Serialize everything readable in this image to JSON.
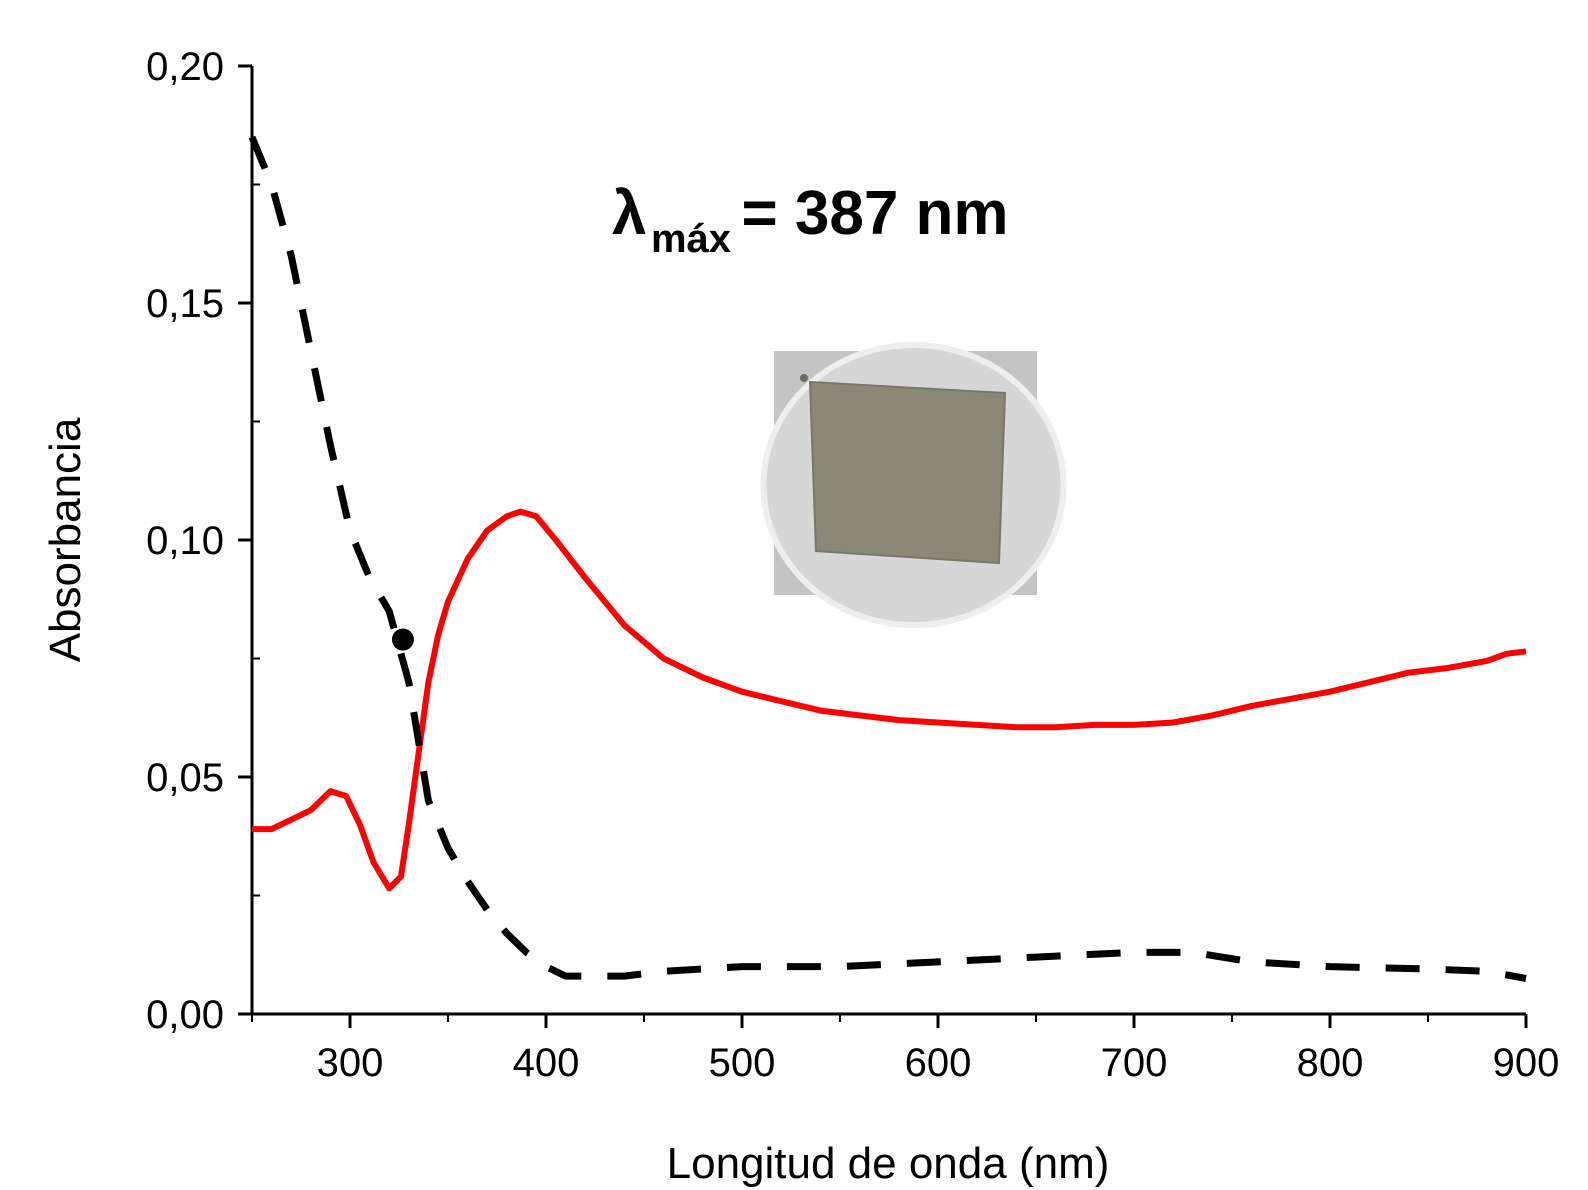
{
  "chart_data": {
    "type": "line",
    "xlabel": "Longitud de onda (nm)",
    "ylabel": "Absorbancia",
    "xlim": [
      250,
      900
    ],
    "ylim": [
      0,
      0.2
    ],
    "x_ticks": [
      300,
      400,
      500,
      600,
      700,
      800,
      900
    ],
    "x_tick_labels": [
      "300",
      "400",
      "500",
      "600",
      "700",
      "800",
      "900"
    ],
    "y_ticks": [
      0,
      0.05,
      0.1,
      0.15,
      0.2
    ],
    "y_tick_labels": [
      "0,00",
      "0,05",
      "0,10",
      "0,15",
      "0,20"
    ],
    "grid": false,
    "annotation": {
      "symbol": "λ",
      "subscript": "máx",
      "text": "= 387 nm",
      "peak_x": 387
    },
    "series": [
      {
        "style": "solid",
        "color": "#ff0000",
        "points": [
          [
            250,
            0.039
          ],
          [
            260,
            0.039
          ],
          [
            270,
            0.041
          ],
          [
            280,
            0.043
          ],
          [
            290,
            0.047
          ],
          [
            298,
            0.046
          ],
          [
            305,
            0.04
          ],
          [
            312,
            0.032
          ],
          [
            320,
            0.0265
          ],
          [
            326,
            0.029
          ],
          [
            330,
            0.04
          ],
          [
            335,
            0.055
          ],
          [
            340,
            0.07
          ],
          [
            345,
            0.08
          ],
          [
            350,
            0.087
          ],
          [
            360,
            0.096
          ],
          [
            370,
            0.102
          ],
          [
            380,
            0.105
          ],
          [
            387,
            0.106
          ],
          [
            395,
            0.105
          ],
          [
            405,
            0.1
          ],
          [
            420,
            0.092
          ],
          [
            440,
            0.082
          ],
          [
            460,
            0.075
          ],
          [
            480,
            0.071
          ],
          [
            500,
            0.068
          ],
          [
            520,
            0.066
          ],
          [
            540,
            0.064
          ],
          [
            560,
            0.063
          ],
          [
            580,
            0.062
          ],
          [
            600,
            0.0615
          ],
          [
            620,
            0.061
          ],
          [
            640,
            0.0605
          ],
          [
            660,
            0.0605
          ],
          [
            680,
            0.061
          ],
          [
            700,
            0.061
          ],
          [
            720,
            0.0615
          ],
          [
            740,
            0.063
          ],
          [
            760,
            0.065
          ],
          [
            780,
            0.0665
          ],
          [
            800,
            0.068
          ],
          [
            820,
            0.07
          ],
          [
            840,
            0.072
          ],
          [
            860,
            0.073
          ],
          [
            880,
            0.0745
          ],
          [
            890,
            0.076
          ],
          [
            900,
            0.0765
          ]
        ]
      },
      {
        "style": "dashed",
        "color": "#000000",
        "marker": {
          "x": 327,
          "y": 0.079
        },
        "points": [
          [
            250,
            0.185
          ],
          [
            260,
            0.175
          ],
          [
            270,
            0.16
          ],
          [
            280,
            0.14
          ],
          [
            290,
            0.12
          ],
          [
            300,
            0.102
          ],
          [
            310,
            0.092
          ],
          [
            320,
            0.085
          ],
          [
            330,
            0.07
          ],
          [
            340,
            0.045
          ],
          [
            350,
            0.035
          ],
          [
            360,
            0.028
          ],
          [
            370,
            0.022
          ],
          [
            380,
            0.017
          ],
          [
            390,
            0.013
          ],
          [
            400,
            0.01
          ],
          [
            410,
            0.008
          ],
          [
            420,
            0.008
          ],
          [
            440,
            0.008
          ],
          [
            460,
            0.009
          ],
          [
            500,
            0.01
          ],
          [
            550,
            0.01
          ],
          [
            600,
            0.011
          ],
          [
            650,
            0.012
          ],
          [
            700,
            0.013
          ],
          [
            730,
            0.013
          ],
          [
            760,
            0.011
          ],
          [
            800,
            0.01
          ],
          [
            850,
            0.0095
          ],
          [
            880,
            0.009
          ],
          [
            900,
            0.0075
          ]
        ]
      }
    ],
    "inset_photo": {
      "dish_color": "#c4c4c4",
      "film_color": "#8b8877"
    }
  }
}
